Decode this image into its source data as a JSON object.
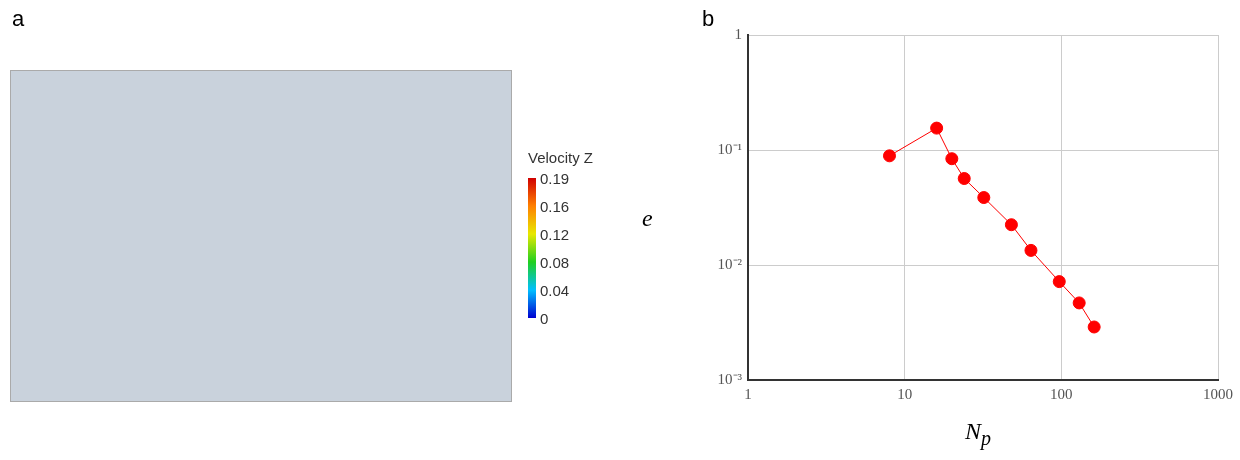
{
  "chart_data": [
    {
      "type": "other",
      "title": "a",
      "annotations": [
        "Velocity Z",
        "0.19",
        "0.16",
        "0.12",
        "0.08",
        "0.04",
        "0"
      ]
    },
    {
      "type": "line",
      "title": "b",
      "xlabel": "N$_{p}$",
      "ylabel": "e",
      "log": "xy",
      "grid": true,
      "legend": false,
      "marker": "circle",
      "line_style": "solid",
      "x": [
        8,
        16,
        20,
        24,
        32,
        48,
        64,
        97,
        130,
        162
      ],
      "series": [
        {
          "color": "#ff0000",
          "values": [
            0.089,
            0.155,
            0.084,
            0.0565,
            0.0386,
            0.0224,
            0.0134,
            0.00717,
            0.00468,
            0.00289
          ]
        }
      ],
      "xlim": [
        1,
        1000
      ],
      "xticks": [
        1,
        10,
        100,
        1000
      ],
      "ylim": [
        0.001,
        1
      ],
      "yticks": [
        {
          "value": 0.001,
          "label": "10⁻³"
        },
        {
          "value": 0.01,
          "label": "10⁻²"
        },
        {
          "value": 0.1,
          "label": "10⁻¹"
        },
        1
      ]
    }
  ]
}
